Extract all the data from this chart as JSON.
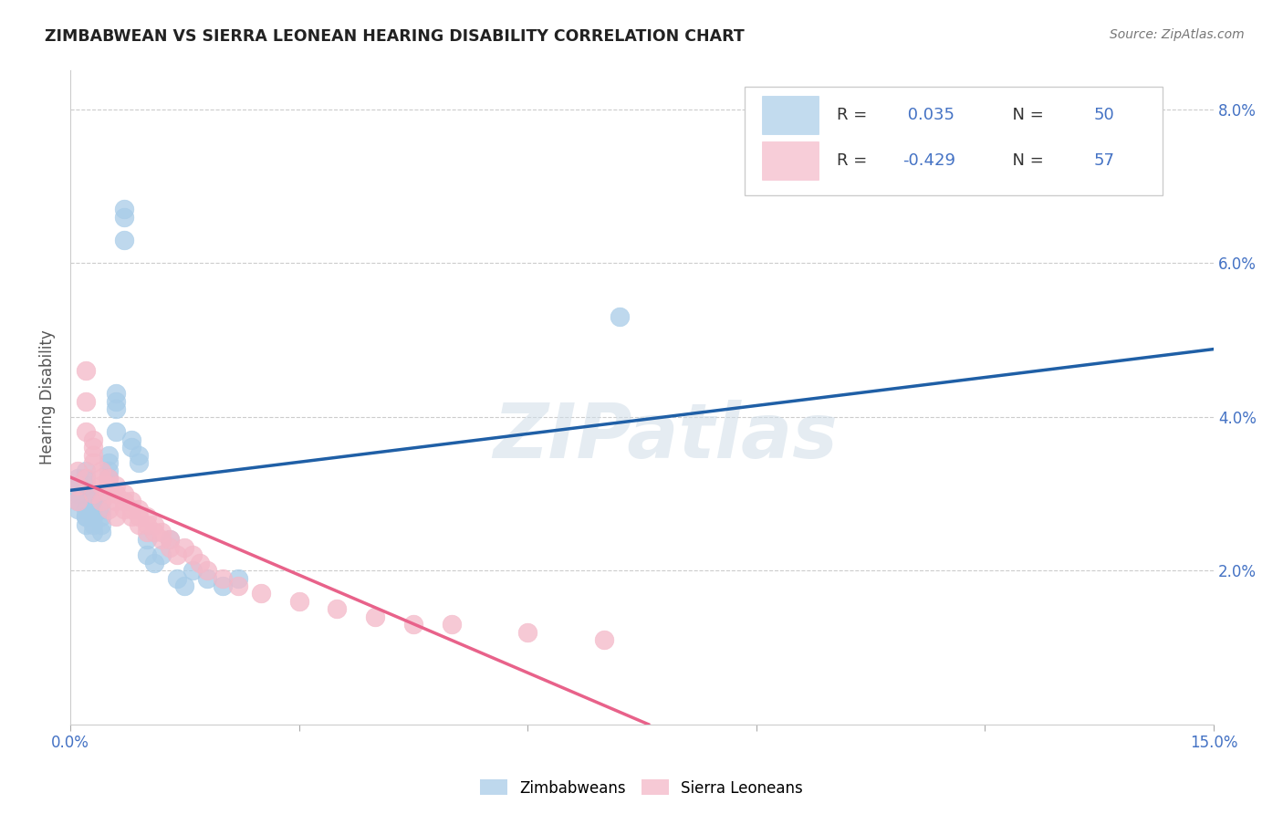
{
  "title": "ZIMBABWEAN VS SIERRA LEONEAN HEARING DISABILITY CORRELATION CHART",
  "source": "Source: ZipAtlas.com",
  "ylabel": "Hearing Disability",
  "xlim": [
    0.0,
    0.15
  ],
  "ylim": [
    0.0,
    0.085
  ],
  "zim_color": "#a8cce8",
  "sl_color": "#f4b8c8",
  "zim_line_color": "#1f5fa6",
  "sl_line_color": "#e8628a",
  "zim_R": 0.035,
  "zim_N": 50,
  "sl_R": -0.429,
  "sl_N": 57,
  "zim_x": [
    0.001,
    0.001,
    0.001,
    0.001,
    0.001,
    0.002,
    0.002,
    0.002,
    0.002,
    0.002,
    0.002,
    0.002,
    0.003,
    0.003,
    0.003,
    0.003,
    0.003,
    0.003,
    0.004,
    0.004,
    0.004,
    0.004,
    0.004,
    0.005,
    0.005,
    0.005,
    0.005,
    0.006,
    0.006,
    0.006,
    0.006,
    0.007,
    0.007,
    0.007,
    0.008,
    0.008,
    0.009,
    0.009,
    0.01,
    0.01,
    0.011,
    0.012,
    0.013,
    0.014,
    0.015,
    0.016,
    0.018,
    0.02,
    0.022,
    0.072
  ],
  "zim_y": [
    0.03,
    0.029,
    0.028,
    0.032,
    0.031,
    0.027,
    0.026,
    0.033,
    0.032,
    0.031,
    0.028,
    0.027,
    0.03,
    0.029,
    0.028,
    0.027,
    0.026,
    0.025,
    0.029,
    0.028,
    0.027,
    0.026,
    0.025,
    0.035,
    0.034,
    0.033,
    0.032,
    0.043,
    0.042,
    0.041,
    0.038,
    0.066,
    0.067,
    0.063,
    0.037,
    0.036,
    0.035,
    0.034,
    0.024,
    0.022,
    0.021,
    0.022,
    0.024,
    0.019,
    0.018,
    0.02,
    0.019,
    0.018,
    0.019,
    0.053
  ],
  "sl_x": [
    0.001,
    0.001,
    0.001,
    0.002,
    0.002,
    0.002,
    0.002,
    0.003,
    0.003,
    0.003,
    0.003,
    0.003,
    0.004,
    0.004,
    0.004,
    0.004,
    0.005,
    0.005,
    0.005,
    0.005,
    0.006,
    0.006,
    0.006,
    0.006,
    0.007,
    0.007,
    0.007,
    0.008,
    0.008,
    0.008,
    0.009,
    0.009,
    0.009,
    0.01,
    0.01,
    0.01,
    0.011,
    0.011,
    0.012,
    0.012,
    0.013,
    0.013,
    0.014,
    0.015,
    0.016,
    0.017,
    0.018,
    0.02,
    0.022,
    0.025,
    0.03,
    0.035,
    0.04,
    0.045,
    0.05,
    0.06,
    0.07
  ],
  "sl_y": [
    0.033,
    0.031,
    0.029,
    0.046,
    0.042,
    0.038,
    0.032,
    0.037,
    0.036,
    0.035,
    0.034,
    0.03,
    0.033,
    0.032,
    0.031,
    0.029,
    0.032,
    0.031,
    0.03,
    0.028,
    0.031,
    0.03,
    0.029,
    0.027,
    0.03,
    0.029,
    0.028,
    0.029,
    0.028,
    0.027,
    0.028,
    0.027,
    0.026,
    0.027,
    0.026,
    0.025,
    0.026,
    0.025,
    0.025,
    0.024,
    0.024,
    0.023,
    0.022,
    0.023,
    0.022,
    0.021,
    0.02,
    0.019,
    0.018,
    0.017,
    0.016,
    0.015,
    0.014,
    0.013,
    0.013,
    0.012,
    0.011
  ],
  "watermark_text": "ZIPatlas",
  "background_color": "#ffffff",
  "legend_r_color": "#4472c4",
  "tick_color": "#4472c4",
  "grid_color": "#cccccc"
}
